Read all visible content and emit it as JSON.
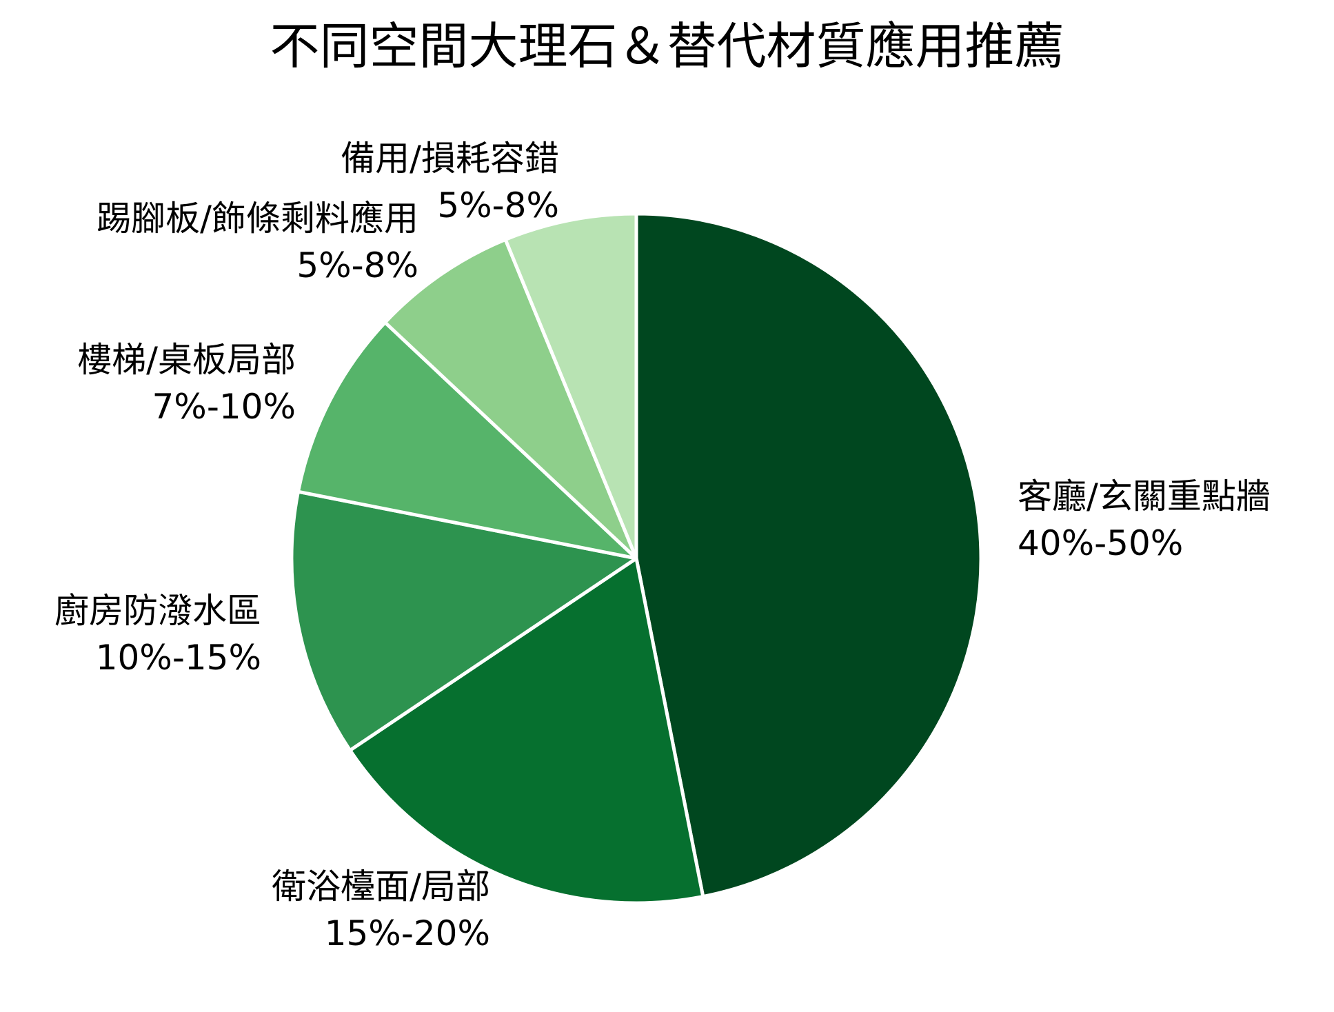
{
  "chart_data": {
    "type": "pie",
    "title": "不同空間大理石＆替代材質應用推薦",
    "start_angle": "12 o'clock, clockwise",
    "categories": [
      "客廳/玄關重點牆",
      "衛浴檯面/局部",
      "廚房防潑水區",
      "樓梯/桌板局部",
      "踢腳板/飾條剩料應用",
      "備用/損耗容錯"
    ],
    "value_labels": [
      "40%-50%",
      "15%-20%",
      "10%-15%",
      "7%-10%",
      "5%-8%",
      "5%-8%"
    ],
    "values": [
      46.9,
      18.7,
      12.5,
      8.9,
      6.8,
      6.2
    ],
    "colors": [
      "#00471f",
      "#06702f",
      "#2d934f",
      "#56b46a",
      "#8ecf8b",
      "#b8e3b3"
    ],
    "legend": "none (direct labels)",
    "grid": false
  },
  "slices": [
    {
      "name": "客廳/玄關重點牆",
      "range": "40%-50%"
    },
    {
      "name": "衛浴檯面/局部",
      "range": "15%-20%"
    },
    {
      "name": "廚房防潑水區",
      "range": "10%-15%"
    },
    {
      "name": "樓梯/桌板局部",
      "range": "7%-10%"
    },
    {
      "name": "踢腳板/飾條剩料應用",
      "range": "5%-8%"
    },
    {
      "name": "備用/損耗容錯",
      "range": "5%-8%"
    }
  ]
}
